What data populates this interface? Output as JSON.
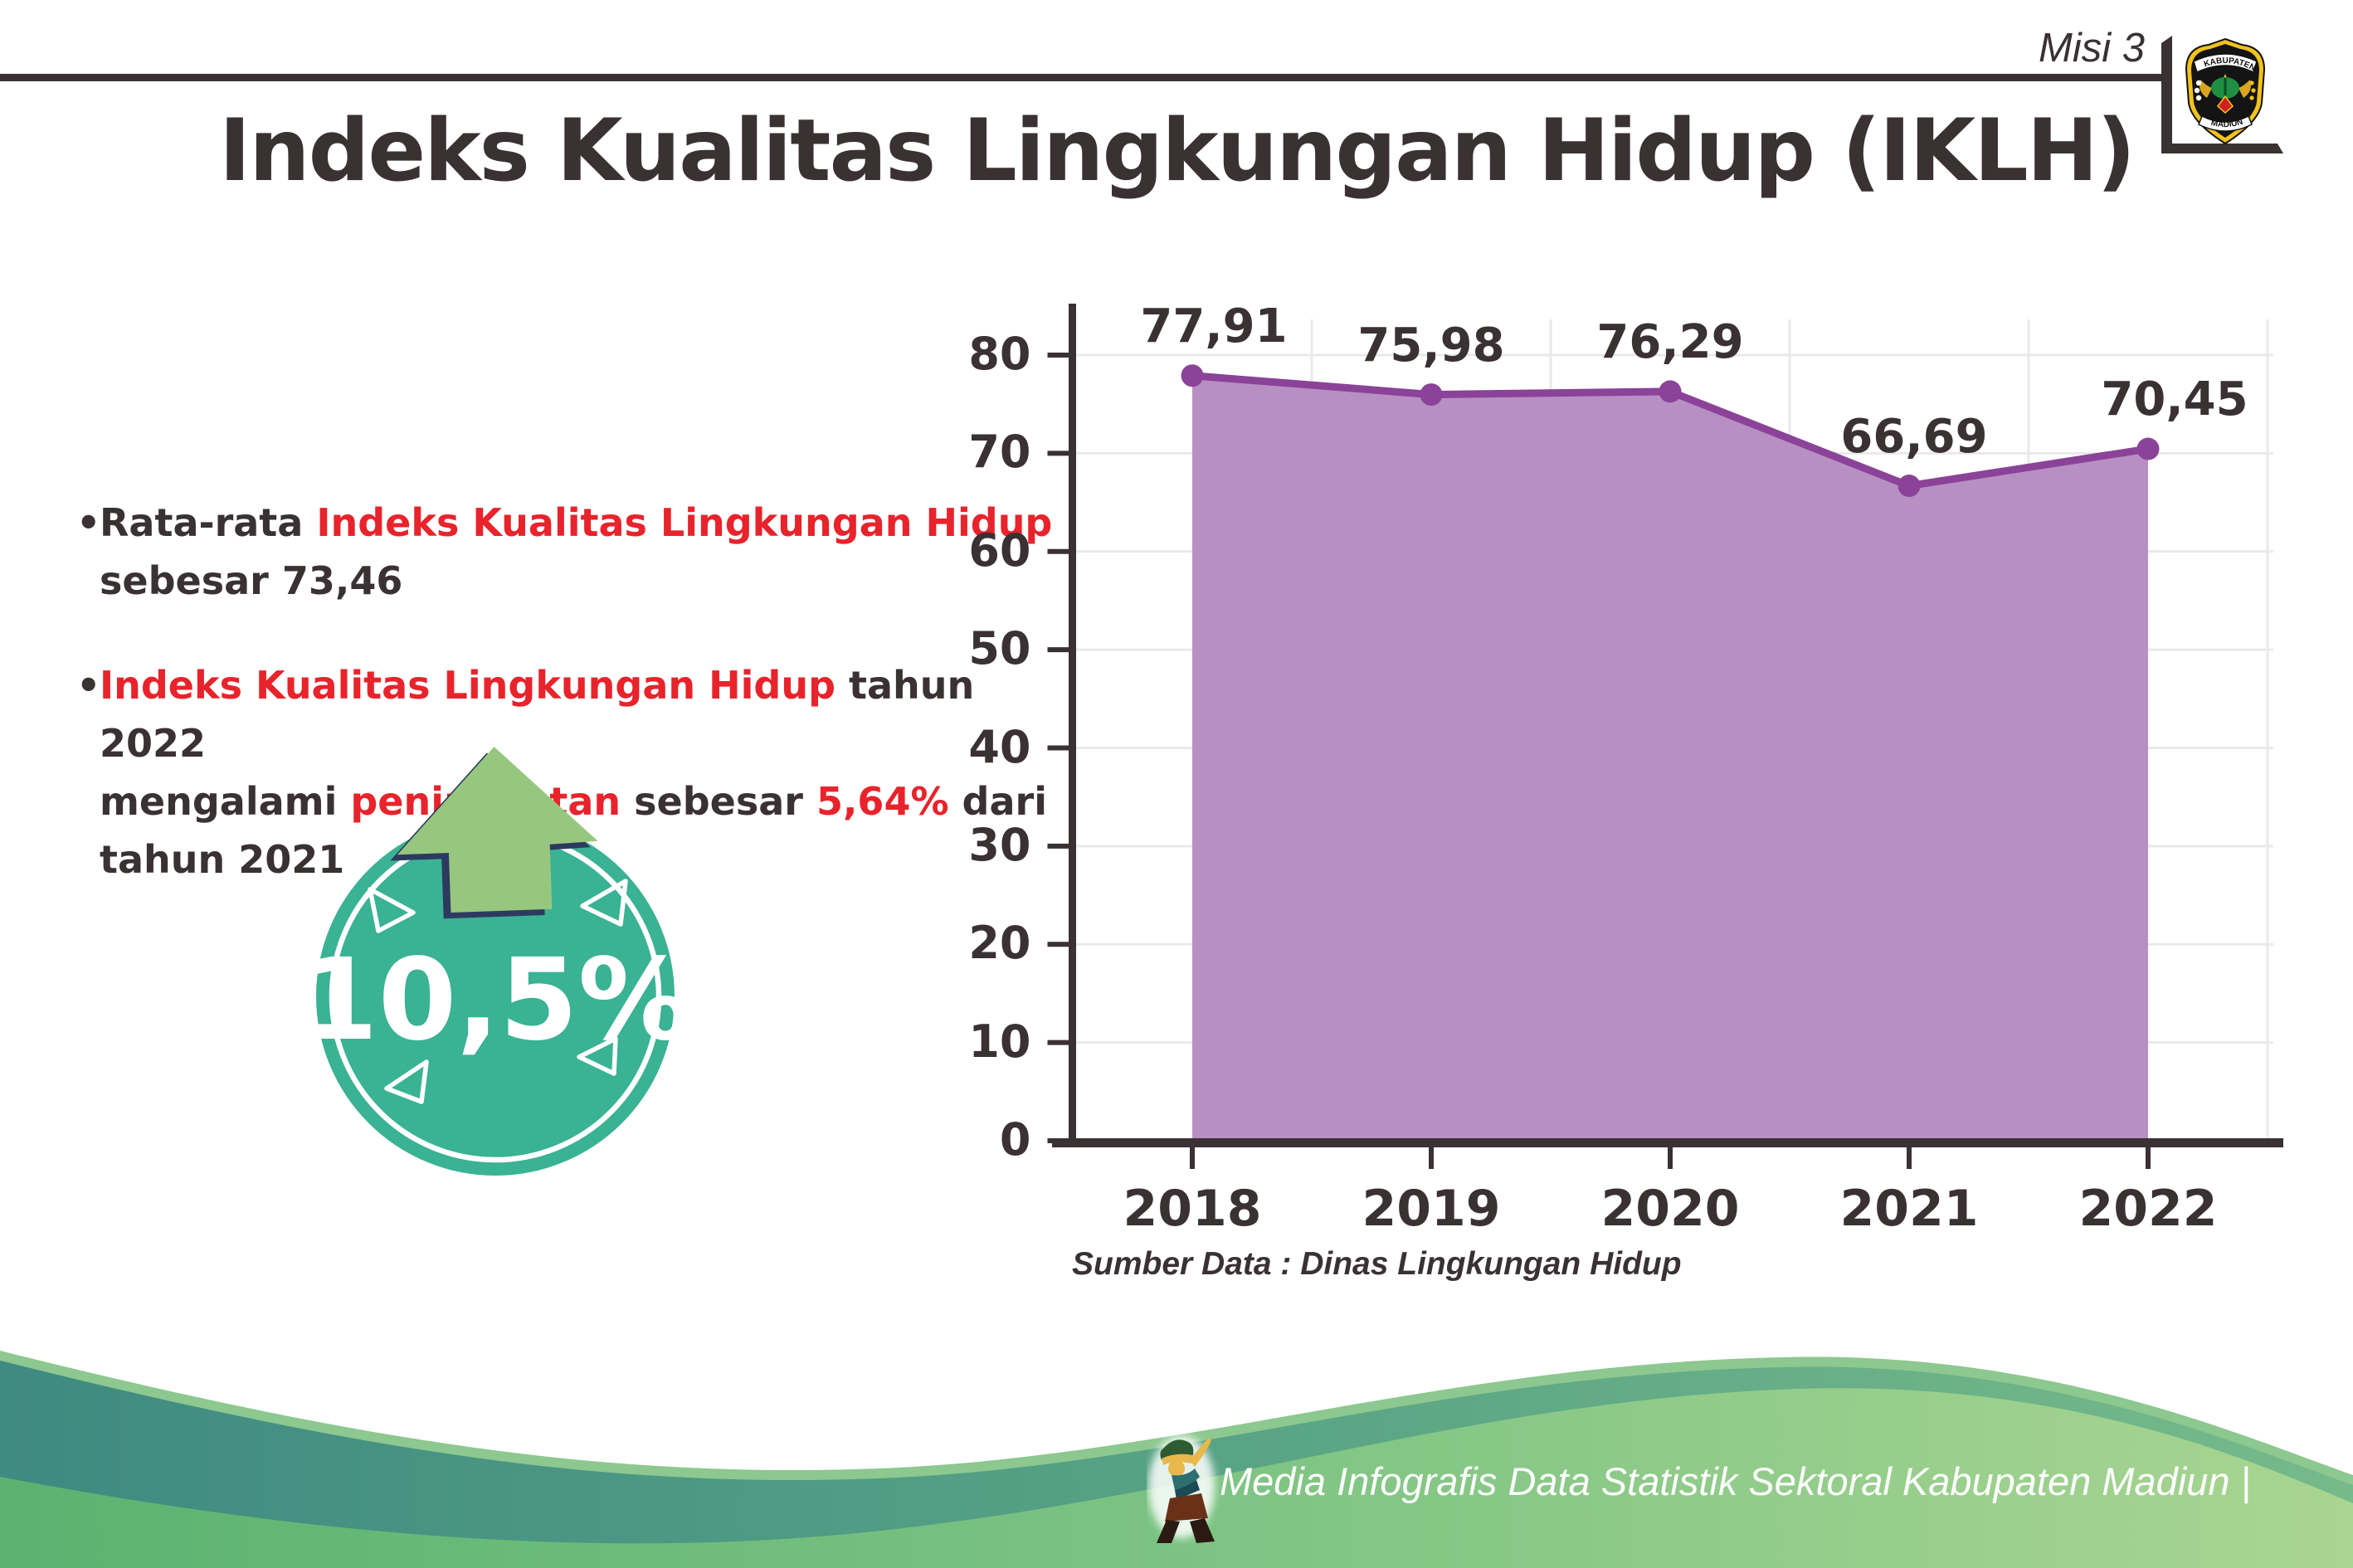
{
  "header": {
    "misi_label": "Misi 3",
    "logo": {
      "top_text": "KABUPATEN",
      "bottom_text": "MADIUN"
    }
  },
  "title": "Indeks Kualitas Lingkungan Hidup (IKLH)",
  "bullets": [
    {
      "lines": [
        [
          {
            "t": "Rata-rata ",
            "c": "dark"
          },
          {
            "t": "Indeks Kualitas Lingkungan Hidup",
            "c": "red"
          }
        ],
        [
          {
            "t": "sebesar 73,46",
            "c": "dark"
          }
        ]
      ]
    },
    {
      "lines": [
        [
          {
            "t": "Indeks Kualitas Lingkungan Hidup",
            "c": "red"
          },
          {
            "t": " tahun 2022",
            "c": "dark"
          }
        ],
        [
          {
            "t": "mengalami ",
            "c": "dark"
          },
          {
            "t": "peningkatan",
            "c": "red"
          },
          {
            "t": " sebesar ",
            "c": "dark"
          },
          {
            "t": "5,64%",
            "c": "red"
          },
          {
            "t": " dari",
            "c": "dark"
          }
        ],
        [
          {
            "t": "tahun 2021",
            "c": "dark"
          }
        ]
      ]
    }
  ],
  "badge": {
    "value": "10,5%",
    "circle_color": "#3ab294",
    "arrow_color": "#97c77f",
    "arrow_outline_color": "#2d3a5f"
  },
  "chart_data": {
    "type": "area",
    "categories": [
      "2018",
      "2019",
      "2020",
      "2021",
      "2022"
    ],
    "values": [
      77.91,
      75.98,
      76.29,
      66.69,
      70.45
    ],
    "value_labels": [
      "77,91",
      "75,98",
      "76,29",
      "66,69",
      "70,45"
    ],
    "title": "",
    "xlabel": "",
    "ylabel": "",
    "ylim": [
      0,
      80
    ],
    "yticks": [
      0,
      10,
      20,
      30,
      40,
      50,
      60,
      70,
      80
    ],
    "grid": true,
    "legend": "none",
    "line_color": "#8a4398",
    "fill_color": "#b88fc3",
    "axis_color": "#3a3133",
    "grid_color": "#e9e9e9"
  },
  "source_note": "Sumber Data : Dinas Lingkungan Hidup",
  "footer": {
    "text": "Media Infografis Data Statistik Sektoral Kabupaten Madiun |"
  },
  "colors": {
    "text_dark": "#3a3133",
    "text_red": "#e8232b",
    "footer_band_left": "#3f8a81",
    "footer_band_right": "#76ba8a",
    "footer_front_left": "#5cb270",
    "footer_front_right": "#a9d592"
  }
}
